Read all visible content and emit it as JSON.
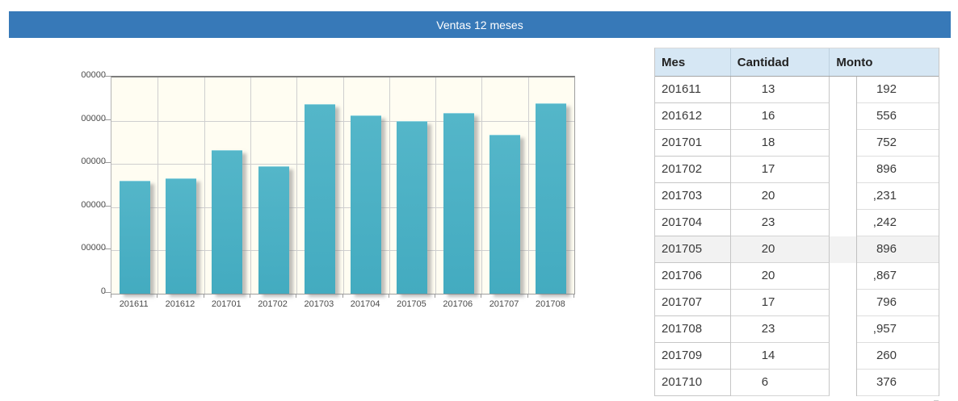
{
  "header": {
    "title": "Ventas 12 meses"
  },
  "chart_data": {
    "type": "bar",
    "title": "",
    "xlabel": "",
    "ylabel": "",
    "categories": [
      "201611",
      "201612",
      "201701",
      "201702",
      "201703",
      "201704",
      "201705",
      "201706",
      "201707",
      "201708"
    ],
    "values_pct_of_ymax": [
      51.9,
      53.0,
      66.2,
      58.6,
      87.3,
      82.0,
      79.6,
      83.1,
      73.1,
      87.8
    ],
    "values_axis_units": [
      2.59,
      2.65,
      3.31,
      2.93,
      4.37,
      4.1,
      3.98,
      4.15,
      3.66,
      4.39
    ],
    "y_tick_labels_visible_top_to_bottom": [
      "00000",
      "00000",
      "00000",
      "00000",
      "00000",
      "0"
    ],
    "axis_note": "y-axis tick labels are clipped at the left edge in the screenshot; only trailing zeros visible",
    "grid": true,
    "legend_shown": false,
    "bar_color": "#4aafc3",
    "plot_background": "#fffdf2"
  },
  "table": {
    "columns": [
      "Mes",
      "Cantidad",
      "Monto"
    ],
    "rows": [
      {
        "mes": "201611",
        "cantidad": "13",
        "monto": "192",
        "highlight": false
      },
      {
        "mes": "201612",
        "cantidad": "16",
        "monto": "556",
        "highlight": false
      },
      {
        "mes": "201701",
        "cantidad": "18",
        "monto": "752",
        "highlight": false
      },
      {
        "mes": "201702",
        "cantidad": "17",
        "monto": "896",
        "highlight": false
      },
      {
        "mes": "201703",
        "cantidad": "20",
        "monto": ",231",
        "highlight": false
      },
      {
        "mes": "201704",
        "cantidad": "23",
        "monto": ",242",
        "highlight": false
      },
      {
        "mes": "201705",
        "cantidad": "20",
        "monto": "896",
        "highlight": true
      },
      {
        "mes": "201706",
        "cantidad": "20",
        "monto": ",867",
        "highlight": false
      },
      {
        "mes": "201707",
        "cantidad": "17",
        "monto": "796",
        "highlight": false
      },
      {
        "mes": "201708",
        "cantidad": "23",
        "monto": ",957",
        "highlight": false
      },
      {
        "mes": "201709",
        "cantidad": "14",
        "monto": "260",
        "highlight": false
      },
      {
        "mes": "201710",
        "cantidad": "6",
        "monto": "376",
        "highlight": false
      }
    ]
  },
  "colors": {
    "titlebar": "#3779b8",
    "table_header_bg": "#d6e7f4",
    "row_highlight": "#f2f2f2",
    "bar": "#4aafc3"
  }
}
